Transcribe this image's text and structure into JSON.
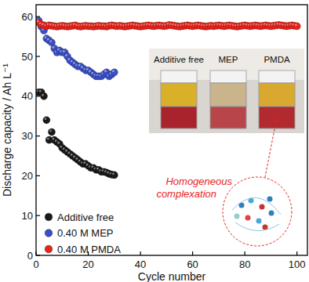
{
  "chart_data": {
    "type": "scatter",
    "x_label": "Cycle number",
    "y_label": "Discharge capacity / Ah L⁻¹",
    "xlim": [
      0,
      104
    ],
    "xticks": [
      0,
      20,
      40,
      60,
      80,
      100
    ],
    "ylim": [
      0,
      63
    ],
    "yticks": [
      0,
      10,
      20,
      30,
      40,
      50,
      60
    ],
    "legend": "lower left",
    "marker": "circle",
    "inset_labels": [
      "Additive free",
      "MEP",
      "PMDA"
    ],
    "annotation": "Homogeneous complexation",
    "series": [
      {
        "name": "Additive free",
        "color": "#1a1a1a",
        "x": [
          1,
          2,
          3,
          4,
          5,
          6,
          7,
          8,
          9,
          10,
          11,
          12,
          13,
          14,
          15,
          16,
          17,
          18,
          19,
          20,
          21,
          22,
          23,
          24,
          25,
          26,
          27,
          28,
          29,
          30
        ],
        "values": [
          41,
          41,
          40,
          34,
          29,
          31,
          29,
          28.5,
          28,
          27,
          26.5,
          26,
          25.5,
          25,
          24.5,
          24,
          23.5,
          23,
          23,
          22.5,
          22,
          22,
          21.5,
          21.5,
          21,
          21,
          20.8,
          20.5,
          20.3,
          20.2
        ]
      },
      {
        "name": "0.40 M MEP",
        "color": "#3b4fc4",
        "x": [
          1,
          2,
          3,
          4,
          5,
          6,
          7,
          8,
          9,
          10,
          11,
          12,
          13,
          14,
          15,
          16,
          17,
          18,
          19,
          20,
          21,
          22,
          23,
          24,
          25,
          26,
          27,
          28,
          29,
          30
        ],
        "values": [
          59,
          57.5,
          56.5,
          54.5,
          54,
          53.5,
          52,
          51,
          51.5,
          51,
          51,
          50,
          49,
          48.5,
          48,
          47.5,
          47.5,
          47,
          46.5,
          46.5,
          46,
          45.5,
          45,
          45,
          45,
          45.5,
          46,
          45,
          45.5,
          46
        ]
      },
      {
        "name": "0.40 M PMDA",
        "color": "#e8231a",
        "x": [
          1,
          2,
          3,
          4,
          5,
          6,
          7,
          8,
          9,
          10,
          11,
          12,
          13,
          14,
          15,
          16,
          17,
          18,
          19,
          20,
          21,
          22,
          23,
          24,
          25,
          26,
          27,
          28,
          29,
          30,
          31,
          32,
          33,
          34,
          35,
          36,
          37,
          38,
          39,
          40,
          41,
          42,
          43,
          44,
          45,
          46,
          47,
          48,
          49,
          50,
          51,
          52,
          53,
          54,
          55,
          56,
          57,
          58,
          59,
          60,
          61,
          62,
          63,
          64,
          65,
          66,
          67,
          68,
          69,
          70,
          71,
          72,
          73,
          74,
          75,
          76,
          77,
          78,
          79,
          80,
          81,
          82,
          83,
          84,
          85,
          86,
          87,
          88,
          89,
          90,
          91,
          92,
          93,
          94,
          95,
          96,
          97,
          98,
          99,
          100
        ],
        "values": [
          58.5,
          58.0,
          57.8,
          57.6,
          57.8,
          57.7,
          57.6,
          57.5,
          57.6,
          57.7,
          57.6,
          57.5,
          57.6,
          57.7,
          57.8,
          57.6,
          57.5,
          57.6,
          57.7,
          57.6,
          57.6,
          57.5,
          57.6,
          57.7,
          57.6,
          57.6,
          57.5,
          57.7,
          57.8,
          57.7,
          57.6,
          57.7,
          57.6,
          57.5,
          57.6,
          57.7,
          57.8,
          57.7,
          57.6,
          57.5,
          57.6,
          57.7,
          57.8,
          57.7,
          57.6,
          57.7,
          57.8,
          57.7,
          57.6,
          57.7,
          57.9,
          57.8,
          57.7,
          57.6,
          57.5,
          57.6,
          57.7,
          57.8,
          57.7,
          57.6,
          57.7,
          57.8,
          57.7,
          57.6,
          57.5,
          57.6,
          57.7,
          57.6,
          57.7,
          57.8,
          57.7,
          57.6,
          57.7,
          57.8,
          57.7,
          57.6,
          57.5,
          57.6,
          57.7,
          57.8,
          57.7,
          57.6,
          57.7,
          57.8,
          57.7,
          57.6,
          57.7,
          57.8,
          57.7,
          57.6,
          57.7,
          57.8,
          57.9,
          57.8,
          57.7,
          57.6,
          57.7,
          57.8,
          57.7,
          57.6
        ]
      }
    ]
  }
}
